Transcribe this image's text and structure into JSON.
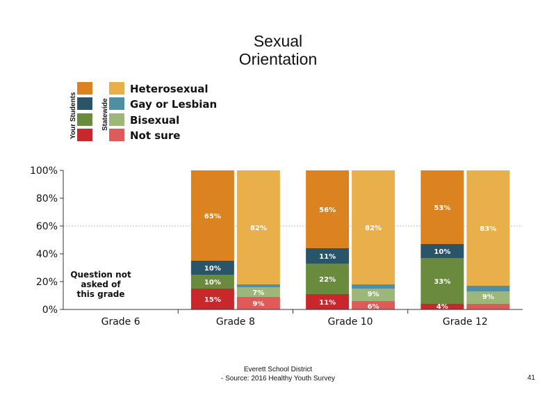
{
  "title_line1": "Sexual",
  "title_line2": "Orientation",
  "legend": {
    "your_students_label": "Your Students",
    "statewide_label": "Statewide",
    "items": [
      {
        "label": "Heterosexual",
        "your_color": "#DB8221",
        "state_color": "#E9AF4A"
      },
      {
        "label": "Gay or Lesbian",
        "your_color": "#2A5468",
        "state_color": "#4E8FA3"
      },
      {
        "label": "Bisexual",
        "your_color": "#6A8A3E",
        "state_color": "#9DB77A"
      },
      {
        "label": "Not sure",
        "your_color": "#C8282C",
        "state_color": "#E05A5A"
      }
    ]
  },
  "chart_data": {
    "type": "bar",
    "stacked": true,
    "categories": [
      "Grade 6",
      "Grade 8",
      "Grade 10",
      "Grade 12"
    ],
    "yticks": [
      "0%",
      "20%",
      "40%",
      "60%",
      "80%",
      "100%"
    ],
    "ylim": [
      0,
      100
    ],
    "reference_line": 60,
    "note": "Question not asked of this grade",
    "groups": {
      "Grade 8": {
        "your_students": {
          "Heterosexual": 65,
          "Gay or Lesbian": 10,
          "Bisexual": 10,
          "Not sure": 15
        },
        "statewide": {
          "Heterosexual": 82,
          "Gay or Lesbian": 2,
          "Bisexual": 7,
          "Not sure": 9
        }
      },
      "Grade 10": {
        "your_students": {
          "Heterosexual": 56,
          "Gay or Lesbian": 11,
          "Bisexual": 22,
          "Not sure": 11
        },
        "statewide": {
          "Heterosexual": 82,
          "Gay or Lesbian": 3,
          "Bisexual": 9,
          "Not sure": 6
        }
      },
      "Grade 12": {
        "your_students": {
          "Heterosexual": 53,
          "Gay or Lesbian": 10,
          "Bisexual": 33,
          "Not sure": 4
        },
        "statewide": {
          "Heterosexual": 83,
          "Gay or Lesbian": 4,
          "Bisexual": 9,
          "Not sure": 4
        }
      }
    },
    "data_labels": {
      "Grade 8": {
        "your_students": {
          "Heterosexual": "65%",
          "Gay or Lesbian": "10%",
          "Bisexual": "10%",
          "Not sure": "15%"
        },
        "statewide": {
          "Heterosexual": "82%",
          "Bisexual": "7%",
          "Not sure": "9%"
        }
      },
      "Grade 10": {
        "your_students": {
          "Heterosexual": "56%",
          "Gay or Lesbian": "11%",
          "Bisexual": "22%",
          "Not sure": "11%"
        },
        "statewide": {
          "Heterosexual": "82%",
          "Bisexual": "9%",
          "Not sure": "6%"
        }
      },
      "Grade 12": {
        "your_students": {
          "Heterosexual": "53%",
          "Gay or Lesbian": "10%",
          "Bisexual": "33%",
          "Not sure": "4%"
        },
        "statewide": {
          "Heterosexual": "83%",
          "Bisexual": "9%"
        }
      }
    }
  },
  "footer": {
    "line1": "Everett School District",
    "line2": "- Source: 2016 Healthy  Youth Survey",
    "page_number": "41"
  }
}
